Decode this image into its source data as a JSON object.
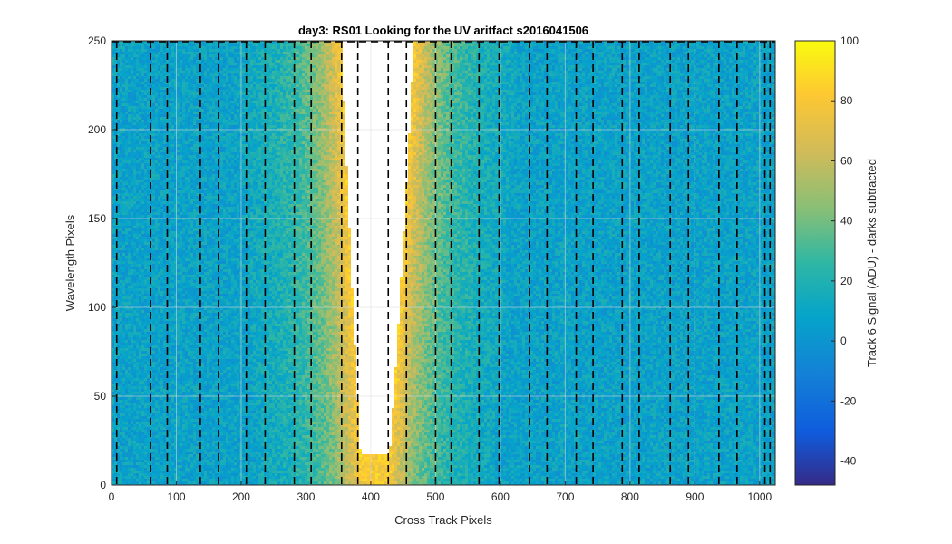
{
  "chart_data": {
    "type": "heatmap",
    "title": "day3: RS01  Looking for the UV aritfact  s2016041506",
    "xlabel": "Cross Track Pixels",
    "ylabel": "Wavelength Pixels",
    "xlim": [
      0,
      1024
    ],
    "ylim": [
      0,
      250
    ],
    "xticks": [
      0,
      100,
      200,
      300,
      400,
      500,
      600,
      700,
      800,
      900,
      1000
    ],
    "yticks": [
      0,
      50,
      100,
      150,
      200,
      250
    ],
    "grid": true,
    "colormap": "parula",
    "colorbar": {
      "label": "Track 6 Signal (ADU) - darks subtracted",
      "clim": [
        -48,
        100
      ],
      "ticks": [
        -40,
        -20,
        0,
        20,
        40,
        60,
        80,
        100
      ]
    },
    "dashed_lines_x": [
      8,
      60,
      86,
      137,
      165,
      208,
      237,
      282,
      308,
      355,
      380,
      427,
      455,
      500,
      524,
      567,
      598,
      645,
      672,
      717,
      743,
      788,
      814,
      862,
      890,
      937,
      965,
      1008,
      1016
    ],
    "saturated_region": {
      "description_color": "#ffffff",
      "x_range_at_top": [
        355,
        467
      ],
      "x_range_at_bottom": [
        388,
        425
      ],
      "min_y": 18
    }
  },
  "colors": {
    "background_field": "#1397c6",
    "grid": "#ffffff",
    "dashed": "#000000",
    "saturated": "#ffffff"
  }
}
